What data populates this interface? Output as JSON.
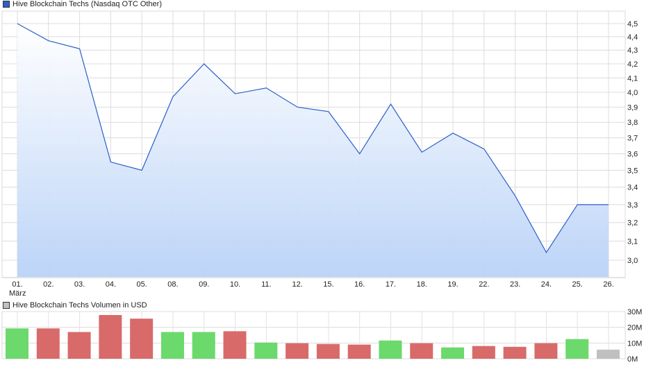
{
  "chart_data": [
    {
      "type": "area",
      "title": "Hive Blockchain Techs (Nasdaq OTC Other)",
      "categories": [
        "01.",
        "02.",
        "03.",
        "04.",
        "05.",
        "08.",
        "09.",
        "10.",
        "11.",
        "12.",
        "15.",
        "16.",
        "17.",
        "18.",
        "19.",
        "22.",
        "23.",
        "24.",
        "25.",
        "26."
      ],
      "month_label": "März",
      "values": [
        4.5,
        4.37,
        4.31,
        3.55,
        3.5,
        3.97,
        4.2,
        3.99,
        4.03,
        3.9,
        3.87,
        3.6,
        3.92,
        3.61,
        3.73,
        3.63,
        3.35,
        3.04,
        3.3,
        3.3
      ],
      "yticks": [
        "4,5",
        "4,4",
        "4,3",
        "4,2",
        "4,1",
        "4,0",
        "3,9",
        "3,8",
        "3,7",
        "3,6",
        "3,5",
        "3,4",
        "3,3",
        "3,2",
        "3,1",
        "3,0"
      ],
      "ytick_values": [
        4.5,
        4.4,
        4.3,
        4.2,
        4.1,
        4.0,
        3.9,
        3.8,
        3.7,
        3.6,
        3.5,
        3.4,
        3.3,
        3.2,
        3.1,
        3.0
      ],
      "yscale": "log",
      "ylim": [
        2.9,
        4.58
      ],
      "grid": true,
      "legend": "top-left",
      "colors": {
        "line": "#2b5fc9",
        "fill_top": "#ffffff",
        "fill_bottom": "#b9d2f7",
        "swatch": "#2b5fc9"
      }
    },
    {
      "type": "bar",
      "title": "Hive Blockchain Techs Volumen in USD",
      "categories": [
        "01.",
        "02.",
        "03.",
        "04.",
        "05.",
        "08.",
        "09.",
        "10.",
        "11.",
        "12.",
        "15.",
        "16.",
        "17.",
        "18.",
        "19.",
        "22.",
        "23.",
        "24.",
        "25.",
        "26."
      ],
      "values": [
        19.3,
        19.3,
        17.0,
        27.8,
        25.5,
        17.0,
        17.0,
        17.5,
        10.3,
        9.9,
        9.4,
        9.0,
        11.6,
        9.9,
        7.2,
        8.1,
        7.6,
        9.9,
        12.5,
        5.8
      ],
      "unit": "M USD",
      "direction": [
        "up",
        "down",
        "down",
        "down",
        "down",
        "up",
        "up",
        "down",
        "up",
        "down",
        "down",
        "down",
        "up",
        "down",
        "up",
        "down",
        "down",
        "down",
        "up",
        "neutral"
      ],
      "yticks": [
        "30M",
        "20M",
        "10M",
        "0M"
      ],
      "ytick_values": [
        30,
        20,
        10,
        0
      ],
      "ylim": [
        0,
        30
      ],
      "grid": true,
      "legend": "top-left",
      "colors": {
        "up": "#6bd96b",
        "down": "#d96a6a",
        "neutral": "#c0c0c0",
        "swatch": "#c0c0c0"
      }
    }
  ]
}
